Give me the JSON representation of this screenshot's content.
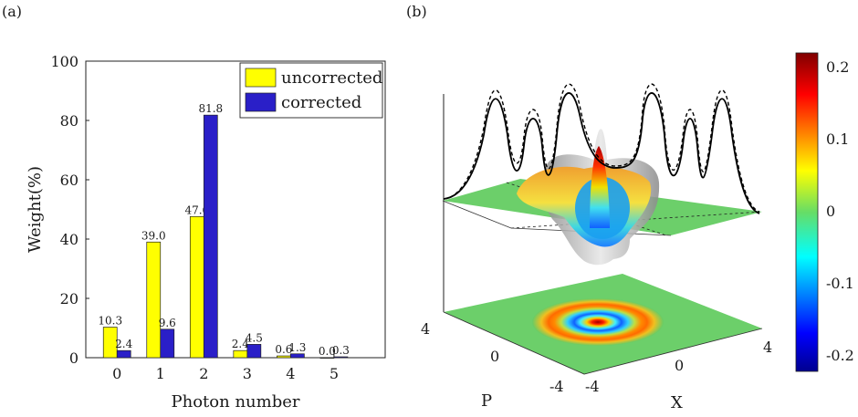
{
  "panels": {
    "a": "(a)",
    "b": "(b)"
  },
  "chart_data": [
    {
      "type": "bar",
      "xlabel": "Photon number",
      "ylabel": "Weight(%)",
      "ylim": [
        0,
        100
      ],
      "yticks": [
        0,
        20,
        40,
        60,
        80,
        100
      ],
      "categories": [
        "0",
        "1",
        "2",
        "3",
        "4",
        "5"
      ],
      "legend": "top-right",
      "grid": false,
      "series": [
        {
          "name": "uncorrected",
          "color": "#ffff00",
          "values": [
            10.3,
            39.0,
            47.6,
            2.4,
            0.6,
            0.0
          ],
          "labels": [
            "10.3",
            "39.0",
            "47.6",
            "2.4",
            "0.6",
            "0.0"
          ]
        },
        {
          "name": "corrected",
          "color": "#2a1fc8",
          "values": [
            2.4,
            9.6,
            81.8,
            4.5,
            1.3,
            0.3
          ],
          "labels": [
            "2.4",
            "9.6",
            "81.8",
            "4.5",
            "1.3",
            "0.3"
          ]
        }
      ]
    },
    {
      "type": "surface",
      "xlabel": "X",
      "ylabel": "P",
      "x_ticks": [
        "-4",
        "0",
        "4"
      ],
      "p_ticks": [
        "4",
        "0",
        "-4"
      ],
      "colorbar": {
        "ticks": [
          "0.2",
          "0.1",
          "0",
          "-0.1",
          "-0.2"
        ],
        "range": [
          -0.22,
          0.22
        ],
        "colormap": "jet"
      }
    }
  ]
}
